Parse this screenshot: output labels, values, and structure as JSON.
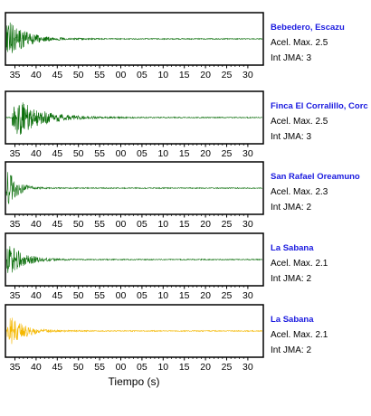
{
  "chart_data": {
    "type": "line",
    "xlabel": "Tiempo (s)",
    "tick_labels": [
      "35",
      "40",
      "45",
      "50",
      "55",
      "00",
      "05",
      "10",
      "15",
      "20",
      "25",
      "30"
    ],
    "panels": [
      {
        "station": "Bebedero, Escazu",
        "pga_text": "Acel. Max. 2.5",
        "jma_text": "Int JMA: 3",
        "color": "#0a6e0a",
        "onset": 0.05,
        "peak": 0.95,
        "decay": 0.25
      },
      {
        "station": "Finca El Corralillo, Corc",
        "pga_text": "Acel. Max. 2.5",
        "jma_text": "Int JMA: 3",
        "color": "#0a6e0a",
        "onset": 1.6,
        "peak": 1.0,
        "decay": 0.18
      },
      {
        "station": "San Rafael Oreamuno",
        "pga_text": "Acel. Max. 2.3",
        "jma_text": "Int JMA: 2",
        "color": "#0a6e0a",
        "onset": 0.2,
        "peak": 0.9,
        "decay": 0.45
      },
      {
        "station": "La Sabana",
        "pga_text": "Acel. Max. 2.1",
        "jma_text": "Int JMA: 2",
        "color": "#0a6e0a",
        "onset": 0.3,
        "peak": 0.75,
        "decay": 0.28
      },
      {
        "station": "La Sabana",
        "pga_text": "Acel. Max. 2.1",
        "jma_text": "Int JMA: 2",
        "color": "#f5b800",
        "onset": 0.3,
        "peak": 0.75,
        "decay": 0.28
      }
    ]
  }
}
